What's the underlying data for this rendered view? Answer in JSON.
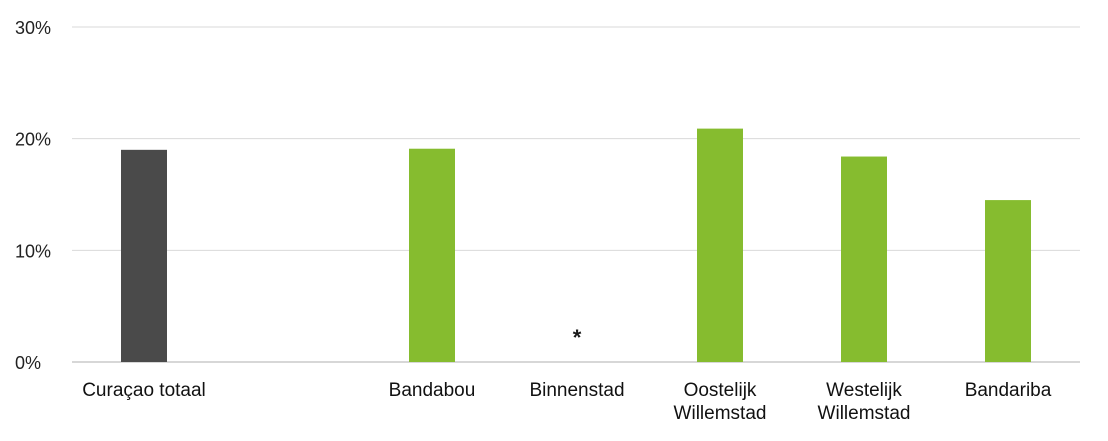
{
  "chart_data": {
    "type": "bar",
    "title": "",
    "xlabel": "",
    "ylabel": "",
    "ylim": [
      0,
      30
    ],
    "y_ticks": [
      0,
      10,
      20,
      30
    ],
    "y_tick_labels": [
      "0%",
      "10%",
      "20%",
      "30%"
    ],
    "grid": true,
    "legend": "none",
    "categories": [
      "Curaçao totaal",
      "Bandabou",
      "Binnenstad",
      "Oostelijk Willemstad",
      "Westelijk Willemstad",
      "Bandariba"
    ],
    "category_label_lines": [
      [
        "Curaçao totaal"
      ],
      [
        "Bandabou"
      ],
      [
        "Binnenstad"
      ],
      [
        "Oostelijk",
        "Willemstad"
      ],
      [
        "Westelijk",
        "Willemstad"
      ],
      [
        "Bandariba"
      ]
    ],
    "values": [
      19.0,
      19.1,
      null,
      20.9,
      18.4,
      14.5
    ],
    "colors": [
      "#4a4a4a",
      "#86bc2f",
      "#86bc2f",
      "#86bc2f",
      "#86bc2f",
      "#86bc2f"
    ],
    "missing_marker": "*"
  }
}
